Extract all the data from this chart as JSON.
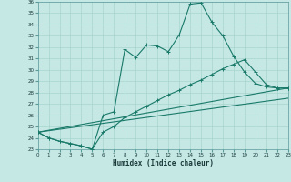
{
  "xlabel": "Humidex (Indice chaleur)",
  "bg_color": "#c5e8e4",
  "line_color": "#1a7a6a",
  "grid_color": "#a8d4ce",
  "xlim": [
    0,
    23
  ],
  "ylim": [
    23,
    36
  ],
  "xticks": [
    0,
    1,
    2,
    3,
    4,
    5,
    6,
    7,
    8,
    9,
    10,
    11,
    12,
    13,
    14,
    15,
    16,
    17,
    18,
    19,
    20,
    21,
    22,
    23
  ],
  "yticks": [
    23,
    24,
    25,
    26,
    27,
    28,
    29,
    30,
    31,
    32,
    33,
    34,
    35,
    36
  ],
  "line1_x": [
    0,
    1,
    2,
    3,
    4,
    5,
    6,
    7,
    8,
    9,
    10,
    11,
    12,
    13,
    14,
    15,
    16,
    17,
    18,
    19,
    20,
    21,
    22,
    23
  ],
  "line1_y": [
    24.5,
    24.0,
    23.7,
    23.5,
    23.3,
    23.0,
    26.0,
    26.3,
    31.8,
    31.1,
    32.2,
    32.1,
    31.6,
    33.1,
    35.8,
    35.9,
    34.2,
    33.0,
    31.2,
    29.8,
    28.8,
    28.5,
    28.4,
    28.4
  ],
  "line2_x": [
    0,
    1,
    2,
    3,
    4,
    5,
    6,
    7,
    8,
    9,
    10,
    11,
    12,
    13,
    14,
    15,
    16,
    17,
    18,
    19,
    20,
    21,
    22,
    23
  ],
  "line2_y": [
    24.5,
    24.0,
    23.7,
    23.5,
    23.3,
    23.0,
    24.5,
    25.0,
    25.8,
    26.3,
    26.8,
    27.3,
    27.8,
    28.2,
    28.7,
    29.1,
    29.6,
    30.1,
    30.5,
    30.9,
    29.8,
    28.7,
    28.4,
    28.4
  ],
  "line3_x": [
    0,
    23
  ],
  "line3_y": [
    24.5,
    28.4
  ],
  "line4_x": [
    0,
    23
  ],
  "line4_y": [
    24.5,
    27.5
  ]
}
